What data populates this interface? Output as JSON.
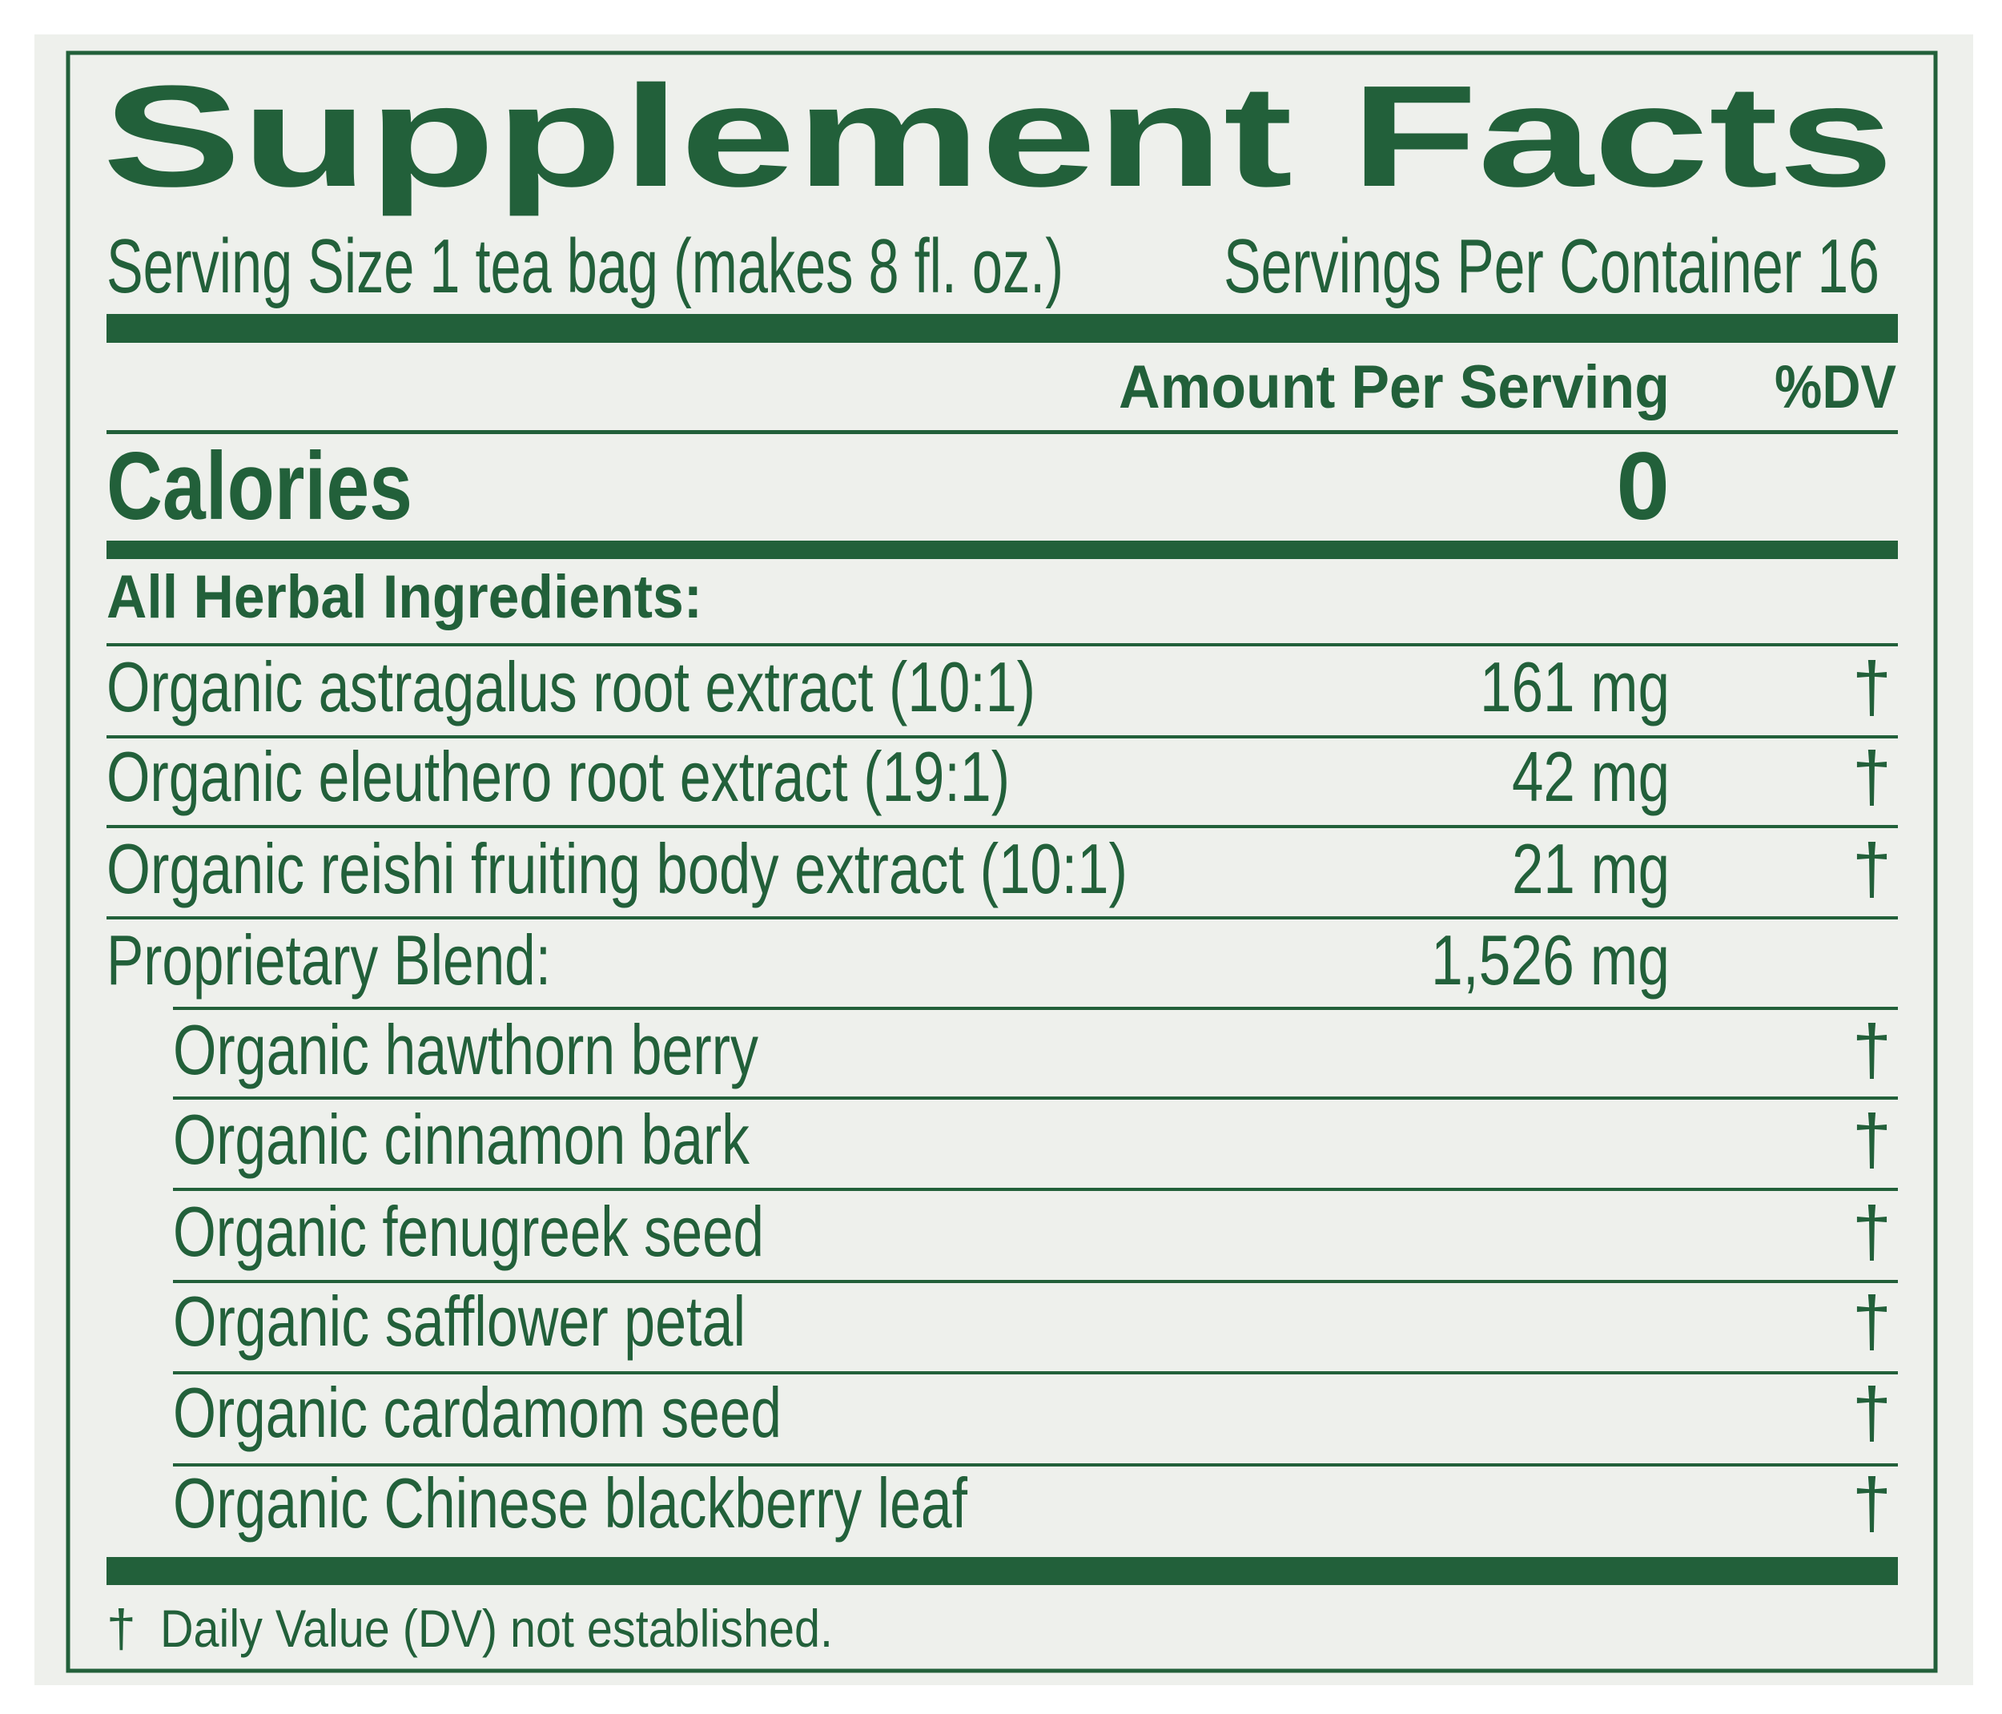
{
  "colors": {
    "ink": "#22603a",
    "panel": "#eef0ec",
    "background": "#ffffff"
  },
  "label": {
    "title": "Supplement Facts",
    "serving_size": "Serving Size 1 tea bag (makes 8 fl. oz.)",
    "servings_per_container": "Servings Per Container 16",
    "header_amount": "Amount Per Serving",
    "header_dv": "%DV",
    "calories_label": "Calories",
    "calories_value": "0",
    "section_heading": "All Herbal Ingredients:",
    "ingredients": [
      {
        "name": "Organic astragalus root extract (10:1)",
        "amount": "161 mg",
        "dv": "†"
      },
      {
        "name": "Organic eleuthero root extract (19:1)",
        "amount": "42 mg",
        "dv": "†"
      },
      {
        "name": "Organic reishi fruiting body extract (10:1)",
        "amount": "21 mg",
        "dv": "†"
      },
      {
        "name": "Proprietary Blend:",
        "amount": "1,526 mg",
        "dv": ""
      }
    ],
    "blend_items": [
      {
        "name": "Organic hawthorn berry",
        "dv": "†"
      },
      {
        "name": "Organic cinnamon bark",
        "dv": "†"
      },
      {
        "name": "Organic fenugreek seed",
        "dv": "†"
      },
      {
        "name": "Organic safflower petal",
        "dv": "†"
      },
      {
        "name": "Organic cardamom seed",
        "dv": "†"
      },
      {
        "name": "Organic Chinese blackberry leaf",
        "dv": "†"
      }
    ],
    "footnote_symbol": "†",
    "footnote": "Daily Value (DV) not established."
  }
}
